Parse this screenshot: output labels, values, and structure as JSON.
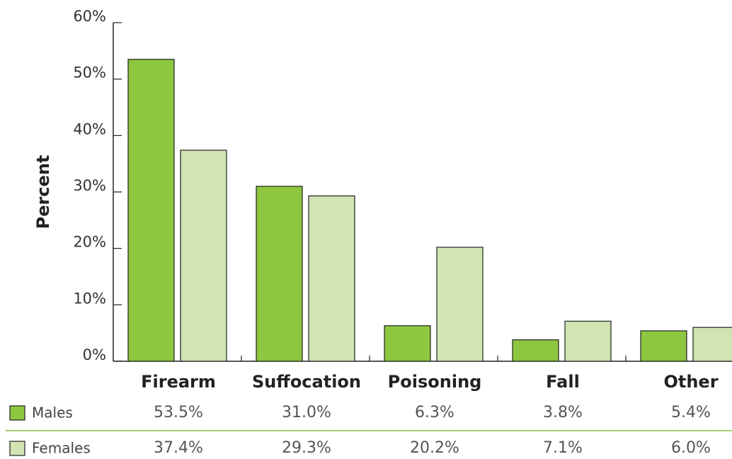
{
  "chart_data": {
    "type": "bar",
    "ylabel": "Percent",
    "categories": [
      "Firearm",
      "Suffocation",
      "Poisoning",
      "Fall",
      "Other"
    ],
    "series": [
      {
        "name": "Males",
        "color": "#8dc63f",
        "values": [
          53.5,
          31.0,
          6.3,
          3.8,
          5.4
        ],
        "value_labels": [
          "53.5%",
          "31.0%",
          "6.3%",
          "3.8%",
          "5.4%"
        ]
      },
      {
        "name": "Females",
        "color": "#d1e4b1",
        "values": [
          37.4,
          29.3,
          20.2,
          7.1,
          6.0
        ],
        "value_labels": [
          "37.4%",
          "29.3%",
          "20.2%",
          "7.1%",
          "6.0%"
        ]
      }
    ],
    "ylim": [
      0,
      60
    ],
    "yticks": [
      {
        "value": 0,
        "label": "0%"
      },
      {
        "value": 10,
        "label": "10%"
      },
      {
        "value": 20,
        "label": "20%"
      },
      {
        "value": 30,
        "label": "30%"
      },
      {
        "value": 40,
        "label": "40%"
      },
      {
        "value": 50,
        "label": "50%"
      },
      {
        "value": 60,
        "label": "60%"
      }
    ]
  }
}
